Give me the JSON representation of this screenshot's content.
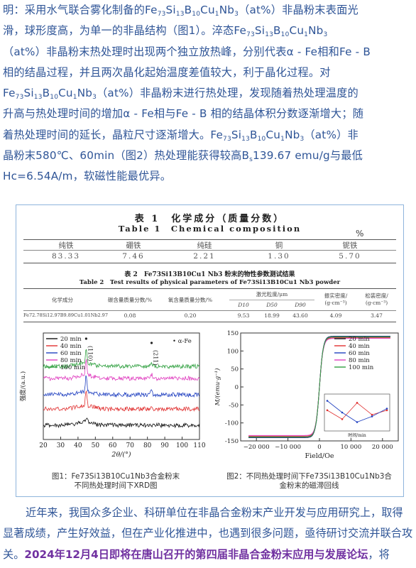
{
  "intro": {
    "l1a": "明：采用水气联合雾化制备的Fe",
    "l1b": "Si",
    "l1c": "B",
    "l1d": "Cu",
    "l1e": "Nb",
    "l1f": "（at%）非晶粉末表面光",
    "l2a": "滑，球形度高，为单一的非晶结构（图1）。淬态Fe",
    "l3": "（at%）非晶粉末热处理时出现两个独立放热峰，分别代表α - Fe相和Fe - B",
    "l4": "相的结晶过程，并且两次晶化起始温度差值较大，利于晶化过程。对",
    "l5": "（at%）非晶粉末进行热处理，发现随着热处理温度的",
    "l6": "升高与热处理时间的增加α - Fe相与Fe - B 相的结晶体积分数逐渐增大；随",
    "l7": "着热处理时间的延长，晶粒尺寸逐渐增大。Fe",
    "l7b": "（at%）非",
    "l8a": "晶粉末580℃、60min（图2）热处理能获得较高B",
    "l8b": "139.67 emu/g与最低",
    "l9": "Hc=6.54A/m，软磁性能最优异。",
    "fe": "Fe",
    "si": "Si",
    "b": "B",
    "cu": "Cu",
    "nb": "Nb",
    "s73": "73",
    "s13": "13",
    "s10": "10",
    "s1": "1",
    "s3": "3",
    "ss": "s"
  },
  "table1": {
    "title_cn": "表 1　化学成分（质量分数）",
    "title_en": "Table 1　Chemical composition",
    "unit": "%",
    "headers": [
      "纯铁",
      "硼铁",
      "纯硅",
      "铜",
      "铌铁"
    ],
    "values": [
      "83.33",
      "7.46",
      "2.21",
      "1.30",
      "5.70"
    ]
  },
  "table2": {
    "title_cn": "表 2　Fe73Si13B10Cu1 Nb3 粉末的物性参数测试结果",
    "title_en": "Table 2　Test results of physical parameters of Fe73Si13B10Cu1 Nb3 powder",
    "h_comp": "化学成分",
    "h_c": "碳含量质量分数/%",
    "h_o": "氧含量质量分数/%",
    "h_laser": "激光粒度/μm",
    "h_d10": "D10",
    "h_d50": "D50",
    "h_d90": "D90",
    "h_tap": "振实密度/",
    "h_tap2": "(g·cm⁻³)",
    "h_loose": "松装密度/",
    "h_loose2": "(g·cm⁻³)",
    "row_comp": "Fe72.78Si12.97B9.89Cu1.01Nb2.97",
    "row": [
      "0.08",
      "0.20",
      "9.53",
      "18.99",
      "43.60",
      "4.09",
      "3.47"
    ]
  },
  "xrd_chart": {
    "chart_data": {
      "type": "line",
      "title": "",
      "xlabel": "2θ/(°)",
      "ylabel": "强度/(a.u.)",
      "xlim": [
        20,
        110
      ],
      "xticks": [
        20,
        30,
        40,
        50,
        60,
        70,
        80,
        90,
        100,
        110
      ],
      "legend_placement": "top-left",
      "peak_labels": [
        "(110)",
        "(211)"
      ],
      "marker_label": "• α-Fe",
      "series": [
        {
          "name": "20 min",
          "color": "#111111"
        },
        {
          "name": "40 min",
          "color": "#e03030"
        },
        {
          "name": "60 min",
          "color": "#2040c0"
        },
        {
          "name": "80 min",
          "color": "#e040c0"
        },
        {
          "name": "100 min",
          "color": "#30a040"
        }
      ]
    }
  },
  "hyst_chart": {
    "chart_data": {
      "type": "line",
      "title": "",
      "xlabel": "Field/Oe",
      "ylabel": "M/(emu·g⁻¹)",
      "xlim": [
        -25000,
        25000
      ],
      "ylim": [
        -150,
        150
      ],
      "xticks": [
        -20000,
        -10000,
        0,
        10000,
        20000
      ],
      "xtick_labels": [
        "−20 000",
        "−10 000",
        "0",
        "10 000",
        "20 000"
      ],
      "yticks": [
        -150,
        -100,
        -50,
        0,
        50,
        100,
        150
      ],
      "legend_placement": "top-right",
      "series": [
        {
          "name": "20 min",
          "color": "#111111",
          "ms": 141
        },
        {
          "name": "40 min",
          "color": "#e03030",
          "ms": 137
        },
        {
          "name": "60 min",
          "color": "#2040c0",
          "ms": 140
        },
        {
          "name": "80 min",
          "color": "#e040c0",
          "ms": 135
        },
        {
          "name": "100 min",
          "color": "#30a040",
          "ms": 139
        }
      ],
      "inset": {
        "xlabel": "时间/min",
        "x": [
          20,
          40,
          60,
          80,
          100
        ],
        "bs": [
          138,
          136,
          139.67,
          137,
          138
        ],
        "hc": [
          12,
          9,
          6.54,
          8,
          10
        ]
      }
    }
  },
  "captions": {
    "fig1_a": "图1：Fe73Si13B10Cu1Nb3合金粉末",
    "fig1_b": "不同热处理时间下XRD图",
    "fig2_a": "图2：不同热处理时间下Fe73Si13B10Cu1Nb3合",
    "fig2_b": "金粉末的磁滞回线"
  },
  "outro": {
    "p1": "近年来，我国众多企业、科研单位在非晶合金粉末产业开发与应用研究上，取得显著成绩，产生好效益，但在产业化推进中，也遇到很多问题，亟待研讨交流并联合攻关。",
    "hl": "2024年12月4日即将在唐山召开的第四届非晶合金粉末应用与发展论坛",
    "tail": "，将"
  }
}
